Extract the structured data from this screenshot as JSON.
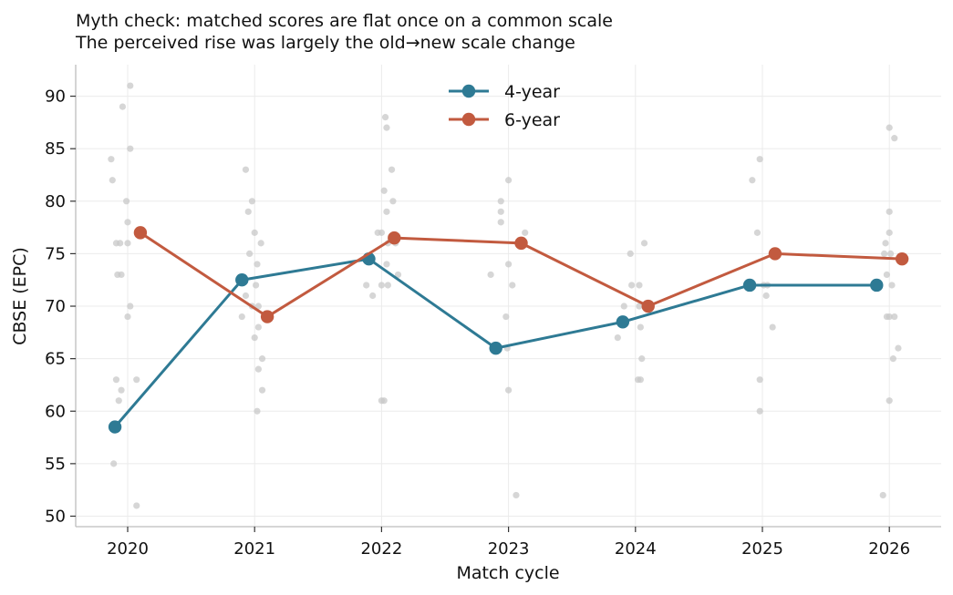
{
  "chart_data": {
    "type": "line",
    "title_lines": [
      "Myth check: matched scores are flat once on a common scale",
      "The perceived rise was largely the old→new scale change"
    ],
    "xlabel": "Match cycle",
    "ylabel": "CBSE (EPC)",
    "categories": [
      "2020",
      "2021",
      "2022",
      "2023",
      "2024",
      "2025",
      "2026"
    ],
    "ylim": [
      49,
      93
    ],
    "yticks": [
      50,
      55,
      60,
      65,
      70,
      75,
      80,
      85,
      90
    ],
    "grid": true,
    "legend_position": "top-center",
    "series": [
      {
        "name": "4-year",
        "color": "#2e7a94",
        "offset": -0.1,
        "values": [
          58.5,
          72.5,
          74.5,
          66.0,
          68.5,
          72.0,
          72.0
        ]
      },
      {
        "name": "6-year",
        "color": "#c25a3f",
        "offset": 0.1,
        "values": [
          77.0,
          69.0,
          76.5,
          76.0,
          70.0,
          75.0,
          74.5
        ]
      }
    ],
    "scatter_color": "#c8c8c8",
    "scatter_points": [
      {
        "x": -0.13,
        "y": 84
      },
      {
        "x": -0.12,
        "y": 82
      },
      {
        "x": -0.09,
        "y": 76
      },
      {
        "x": -0.06,
        "y": 76
      },
      {
        "x": -0.08,
        "y": 73
      },
      {
        "x": -0.05,
        "y": 73
      },
      {
        "x": -0.09,
        "y": 63
      },
      {
        "x": -0.05,
        "y": 62
      },
      {
        "x": -0.07,
        "y": 61
      },
      {
        "x": -0.11,
        "y": 55
      },
      {
        "x": -0.04,
        "y": 89
      },
      {
        "x": 0.02,
        "y": 91
      },
      {
        "x": 0.02,
        "y": 85
      },
      {
        "x": -0.01,
        "y": 80
      },
      {
        "x": 0.0,
        "y": 78
      },
      {
        "x": 0.0,
        "y": 76
      },
      {
        "x": 0.02,
        "y": 70
      },
      {
        "x": 0.0,
        "y": 69
      },
      {
        "x": 0.07,
        "y": 63
      },
      {
        "x": 0.07,
        "y": 51
      },
      {
        "x": 0.93,
        "y": 83
      },
      {
        "x": 0.98,
        "y": 80
      },
      {
        "x": 0.95,
        "y": 79
      },
      {
        "x": 1.0,
        "y": 77
      },
      {
        "x": 1.05,
        "y": 76
      },
      {
        "x": 0.96,
        "y": 75
      },
      {
        "x": 1.02,
        "y": 74
      },
      {
        "x": 1.01,
        "y": 72
      },
      {
        "x": 0.93,
        "y": 71
      },
      {
        "x": 0.9,
        "y": 69
      },
      {
        "x": 0.98,
        "y": 70
      },
      {
        "x": 1.03,
        "y": 70
      },
      {
        "x": 1.03,
        "y": 68
      },
      {
        "x": 1.0,
        "y": 67
      },
      {
        "x": 1.06,
        "y": 65
      },
      {
        "x": 1.03,
        "y": 64
      },
      {
        "x": 1.06,
        "y": 62
      },
      {
        "x": 1.02,
        "y": 60
      },
      {
        "x": 2.03,
        "y": 88
      },
      {
        "x": 2.04,
        "y": 87
      },
      {
        "x": 2.08,
        "y": 83
      },
      {
        "x": 2.02,
        "y": 81
      },
      {
        "x": 2.09,
        "y": 80
      },
      {
        "x": 2.04,
        "y": 79
      },
      {
        "x": 1.97,
        "y": 77
      },
      {
        "x": 2.0,
        "y": 77
      },
      {
        "x": 2.05,
        "y": 76
      },
      {
        "x": 2.11,
        "y": 76
      },
      {
        "x": 2.04,
        "y": 74
      },
      {
        "x": 2.13,
        "y": 73
      },
      {
        "x": 1.88,
        "y": 72
      },
      {
        "x": 2.0,
        "y": 72
      },
      {
        "x": 2.05,
        "y": 72
      },
      {
        "x": 1.93,
        "y": 71
      },
      {
        "x": 2.0,
        "y": 61
      },
      {
        "x": 2.02,
        "y": 61
      },
      {
        "x": 2.86,
        "y": 73
      },
      {
        "x": 2.94,
        "y": 80
      },
      {
        "x": 2.94,
        "y": 79
      },
      {
        "x": 2.94,
        "y": 78
      },
      {
        "x": 3.0,
        "y": 82
      },
      {
        "x": 3.0,
        "y": 74
      },
      {
        "x": 3.03,
        "y": 72
      },
      {
        "x": 2.98,
        "y": 69
      },
      {
        "x": 2.99,
        "y": 66
      },
      {
        "x": 3.0,
        "y": 62
      },
      {
        "x": 3.06,
        "y": 52
      },
      {
        "x": 3.13,
        "y": 77
      },
      {
        "x": 3.96,
        "y": 75
      },
      {
        "x": 3.97,
        "y": 72
      },
      {
        "x": 4.03,
        "y": 72
      },
      {
        "x": 4.03,
        "y": 70
      },
      {
        "x": 4.04,
        "y": 68
      },
      {
        "x": 4.02,
        "y": 63
      },
      {
        "x": 4.04,
        "y": 63
      },
      {
        "x": 4.05,
        "y": 65
      },
      {
        "x": 4.07,
        "y": 76
      },
      {
        "x": 3.86,
        "y": 67
      },
      {
        "x": 3.91,
        "y": 70
      },
      {
        "x": 4.92,
        "y": 82
      },
      {
        "x": 4.98,
        "y": 84
      },
      {
        "x": 4.96,
        "y": 77
      },
      {
        "x": 5.01,
        "y": 72
      },
      {
        "x": 5.04,
        "y": 72
      },
      {
        "x": 5.03,
        "y": 71
      },
      {
        "x": 5.08,
        "y": 68
      },
      {
        "x": 4.98,
        "y": 63
      },
      {
        "x": 4.98,
        "y": 60
      },
      {
        "x": 6.0,
        "y": 87
      },
      {
        "x": 6.04,
        "y": 86
      },
      {
        "x": 6.0,
        "y": 79
      },
      {
        "x": 6.0,
        "y": 77
      },
      {
        "x": 5.97,
        "y": 76
      },
      {
        "x": 5.96,
        "y": 75
      },
      {
        "x": 6.01,
        "y": 75
      },
      {
        "x": 5.98,
        "y": 73
      },
      {
        "x": 6.02,
        "y": 72
      },
      {
        "x": 5.98,
        "y": 69
      },
      {
        "x": 6.0,
        "y": 69
      },
      {
        "x": 6.04,
        "y": 69
      },
      {
        "x": 6.07,
        "y": 66
      },
      {
        "x": 6.03,
        "y": 65
      },
      {
        "x": 6.0,
        "y": 61
      },
      {
        "x": 5.95,
        "y": 52
      }
    ]
  }
}
